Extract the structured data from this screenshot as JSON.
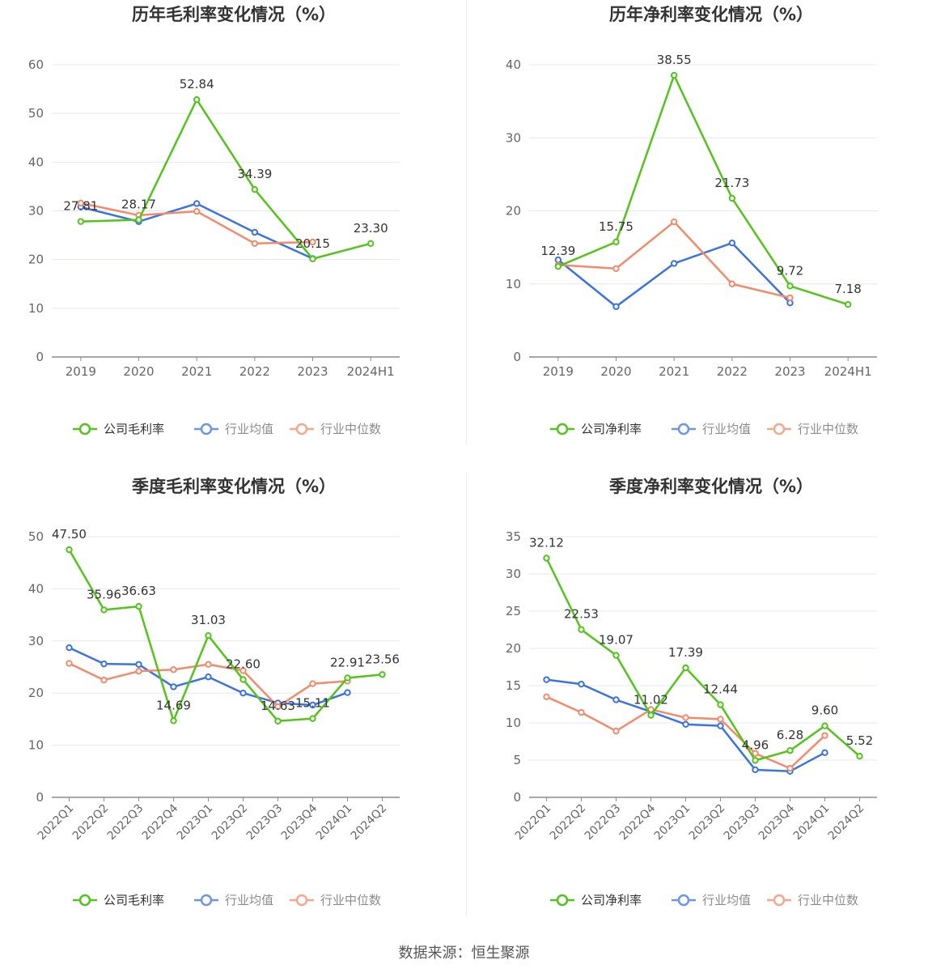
{
  "source": "数据来源：恒生聚源",
  "legend_icons": [
    "circle-line-icon"
  ],
  "colors": {
    "company": "#52c41a",
    "avg": "#3b73e0",
    "median": "#f38b6a",
    "grid": "#e5e8ef",
    "axis": "#8c8c8c",
    "text": "#666666",
    "title": "#333333",
    "label": "#333333"
  },
  "chart_data": [
    {
      "type": "line",
      "title": "历年毛利率变化情况（%）",
      "categories": [
        "2019",
        "2020",
        "2021",
        "2022",
        "2023",
        "2024H1"
      ],
      "ylim": [
        0,
        60
      ],
      "yticks": [
        0,
        10,
        20,
        30,
        40,
        50,
        60
      ],
      "grid": true,
      "legend_position": "bottom",
      "series": [
        {
          "name": "公司毛利率",
          "values": [
            27.81,
            28.17,
            52.84,
            34.39,
            20.15,
            23.3
          ],
          "labels": [
            "27.81",
            "28.17",
            "52.84",
            "34.39",
            "20.15",
            "23.30"
          ]
        },
        {
          "name": "行业均值",
          "values": [
            30.8,
            27.8,
            31.5,
            25.6,
            20.2,
            null
          ]
        },
        {
          "name": "行业中位数",
          "values": [
            31.6,
            29.1,
            29.9,
            23.3,
            23.6,
            null
          ]
        }
      ]
    },
    {
      "type": "line",
      "title": "历年净利率变化情况（%）",
      "categories": [
        "2019",
        "2020",
        "2021",
        "2022",
        "2023",
        "2024H1"
      ],
      "ylim": [
        0,
        40
      ],
      "yticks": [
        0,
        10,
        20,
        30,
        40
      ],
      "grid": true,
      "legend_position": "bottom",
      "series": [
        {
          "name": "公司净利率",
          "values": [
            12.39,
            15.75,
            38.55,
            21.73,
            9.72,
            7.18
          ],
          "labels": [
            "12.39",
            "15.75",
            "38.55",
            "21.73",
            "9.72",
            "7.18"
          ]
        },
        {
          "name": "行业均值",
          "values": [
            13.3,
            6.9,
            12.8,
            15.6,
            7.4,
            null
          ]
        },
        {
          "name": "行业中位数",
          "values": [
            12.6,
            12.1,
            18.5,
            10.0,
            8.1,
            null
          ]
        }
      ]
    },
    {
      "type": "line",
      "title": "季度毛利率变化情况（%）",
      "categories": [
        "2022Q1",
        "2022Q2",
        "2022Q3",
        "2022Q4",
        "2023Q1",
        "2023Q2",
        "2023Q3",
        "2023Q4",
        "2024Q1",
        "2024Q2"
      ],
      "ylim": [
        0,
        50
      ],
      "yticks": [
        0,
        10,
        20,
        30,
        40,
        50
      ],
      "grid": true,
      "legend_position": "bottom",
      "series": [
        {
          "name": "公司毛利率",
          "values": [
            47.5,
            35.96,
            36.63,
            14.69,
            31.03,
            22.6,
            14.63,
            15.11,
            22.91,
            23.56
          ],
          "labels": [
            "47.50",
            "35.96",
            "36.63",
            "14.69",
            "31.03",
            "22.60",
            "14.63",
            "15.11",
            "22.91",
            "23.56"
          ]
        },
        {
          "name": "行业均值",
          "values": [
            28.7,
            25.6,
            25.5,
            21.2,
            23.1,
            20.0,
            18.1,
            17.7,
            20.1,
            null
          ]
        },
        {
          "name": "行业中位数",
          "values": [
            25.7,
            22.5,
            24.2,
            24.5,
            25.5,
            24.3,
            17.4,
            21.8,
            22.3,
            null
          ]
        }
      ]
    },
    {
      "type": "line",
      "title": "季度净利率变化情况（%）",
      "categories": [
        "2022Q1",
        "2022Q2",
        "2022Q3",
        "2022Q4",
        "2023Q1",
        "2023Q2",
        "2023Q3",
        "2023Q4",
        "2024Q1",
        "2024Q2"
      ],
      "ylim": [
        0,
        35
      ],
      "yticks": [
        0,
        5,
        10,
        15,
        20,
        25,
        30,
        35
      ],
      "grid": true,
      "legend_position": "bottom",
      "series": [
        {
          "name": "公司净利率",
          "values": [
            32.12,
            22.53,
            19.07,
            11.02,
            17.39,
            12.44,
            4.96,
            6.28,
            9.6,
            5.52
          ],
          "labels": [
            "32.12",
            "22.53",
            "19.07",
            "11.02",
            "17.39",
            "12.44",
            "4.96",
            "6.28",
            "9.60",
            "5.52"
          ]
        },
        {
          "name": "行业均值",
          "values": [
            15.8,
            15.2,
            13.1,
            11.5,
            9.8,
            9.6,
            3.7,
            3.5,
            6.0,
            null
          ]
        },
        {
          "name": "行业中位数",
          "values": [
            13.5,
            11.4,
            8.9,
            11.8,
            10.7,
            10.5,
            5.9,
            3.9,
            8.3,
            null
          ]
        }
      ]
    }
  ]
}
